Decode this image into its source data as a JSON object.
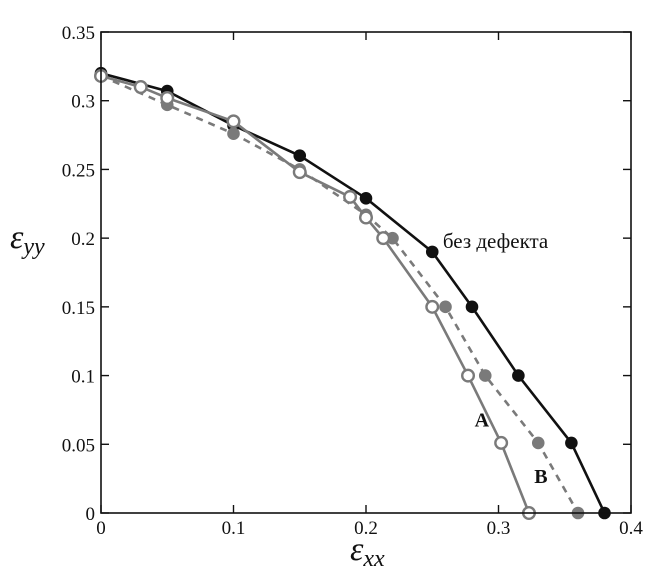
{
  "chart_data": {
    "type": "line",
    "title": "",
    "xlabel": "ε",
    "xlabel_sub": "xx",
    "ylabel": "ε",
    "ylabel_sub": "yy",
    "xlim": [
      0,
      0.4
    ],
    "ylim": [
      0,
      0.35
    ],
    "xticks": [
      0,
      0.1,
      0.2,
      0.3,
      0.4
    ],
    "xtick_labels": [
      "0",
      "0.1",
      "0.2",
      "0.3",
      "0.4"
    ],
    "yticks": [
      0,
      0.05,
      0.1,
      0.15,
      0.2,
      0.25,
      0.3,
      0.35
    ],
    "ytick_labels": [
      "0",
      "0.05",
      "0.1",
      "0.15",
      "0.2",
      "0.25",
      "0.3",
      "0.35"
    ],
    "grid": false,
    "legend": "none",
    "series": [
      {
        "key": "black",
        "color": "#111111",
        "line": "solid",
        "marker": "filled",
        "points": [
          [
            0,
            0.32
          ],
          [
            0.05,
            0.307
          ],
          [
            0.1,
            0.282
          ],
          [
            0.15,
            0.26
          ],
          [
            0.2,
            0.229
          ],
          [
            0.25,
            0.19
          ],
          [
            0.28,
            0.15
          ],
          [
            0.315,
            0.1
          ],
          [
            0.355,
            0.051
          ],
          [
            0.38,
            0.0
          ]
        ]
      },
      {
        "key": "gray-dashed",
        "color": "#7a7a7a",
        "line": "dashed",
        "marker": "filled",
        "points": [
          [
            0,
            0.318
          ],
          [
            0.05,
            0.297
          ],
          [
            0.1,
            0.276
          ],
          [
            0.15,
            0.25
          ],
          [
            0.2,
            0.217
          ],
          [
            0.22,
            0.2
          ],
          [
            0.26,
            0.15
          ],
          [
            0.29,
            0.1
          ],
          [
            0.33,
            0.051
          ],
          [
            0.36,
            0.0
          ]
        ]
      },
      {
        "key": "gray-open",
        "color": "#7a7a7a",
        "line": "solid",
        "marker": "open",
        "points": [
          [
            0,
            0.318
          ],
          [
            0.03,
            0.31
          ],
          [
            0.05,
            0.302
          ],
          [
            0.1,
            0.285
          ],
          [
            0.15,
            0.248
          ],
          [
            0.188,
            0.23
          ],
          [
            0.2,
            0.215
          ],
          [
            0.213,
            0.2
          ],
          [
            0.25,
            0.15
          ],
          [
            0.277,
            0.1
          ],
          [
            0.302,
            0.051
          ],
          [
            0.323,
            0.0
          ]
        ]
      }
    ],
    "annotations": [
      {
        "key": "A",
        "text": "A",
        "x": 0.282,
        "y": 0.063
      },
      {
        "key": "B",
        "text": "B",
        "x": 0.327,
        "y": 0.022
      },
      {
        "key": "bez",
        "text": "без дефекта",
        "x": 0.258,
        "y": 0.193
      }
    ]
  }
}
